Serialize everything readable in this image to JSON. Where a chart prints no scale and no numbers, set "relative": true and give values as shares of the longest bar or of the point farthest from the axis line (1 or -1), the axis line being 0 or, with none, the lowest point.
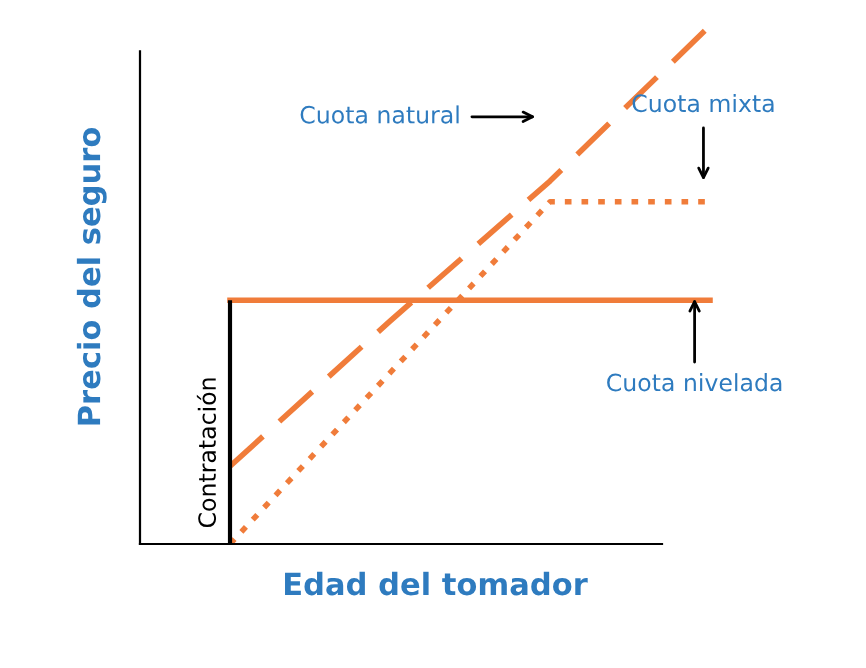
{
  "chart_data": {
    "type": "line",
    "relative": true,
    "xlabel": "Edad del tomador",
    "ylabel": "Precio del seguro",
    "categories": [
      null,
      null,
      null,
      null
    ],
    "series": [
      {
        "color": "#f07c3a",
        "line_style": "dashed",
        "values": [
          0.15,
          0.43,
          0.7,
          1
        ]
      },
      {
        "color": "#f07c3a",
        "line_style": "dotted",
        "values": [
          0,
          0.33,
          0.66,
          0.66
        ]
      },
      {
        "color": "#f07c3a",
        "line_style": "solid",
        "values": [
          0.47,
          0.47,
          0.47,
          0.47
        ]
      }
    ],
    "annotations": [
      "Cuota natural",
      "Cuota mixta",
      "Cuota nivelada",
      "Contratación"
    ],
    "legend": false
  }
}
